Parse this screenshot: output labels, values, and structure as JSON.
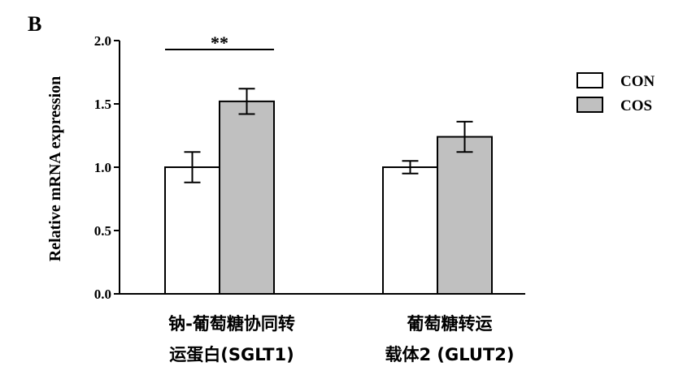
{
  "panel_label": "B",
  "chart_data": {
    "type": "bar",
    "categories": [
      [
        "钠-葡萄糖协同转",
        "运蛋白(SGLT1)"
      ],
      [
        "葡萄糖转运",
        "载体2 (GLUT2)"
      ]
    ],
    "series": [
      {
        "name": "CON",
        "values": [
          1.0,
          1.0
        ],
        "errors": [
          0.12,
          0.05
        ],
        "color": "#ffffff"
      },
      {
        "name": "COS",
        "values": [
          1.52,
          1.24
        ],
        "errors": [
          0.1,
          0.12
        ],
        "color": "#c0c0c0"
      }
    ],
    "ylabel": "Relative mRNA expression",
    "xlabel": "",
    "ylim": [
      0,
      2.0
    ],
    "yticks": [
      "0.0",
      "0.5",
      "1.0",
      "1.5",
      "2.0"
    ],
    "significance": [
      {
        "category_index": 0,
        "label": "**"
      }
    ],
    "legend": "top-right",
    "grid": false
  }
}
